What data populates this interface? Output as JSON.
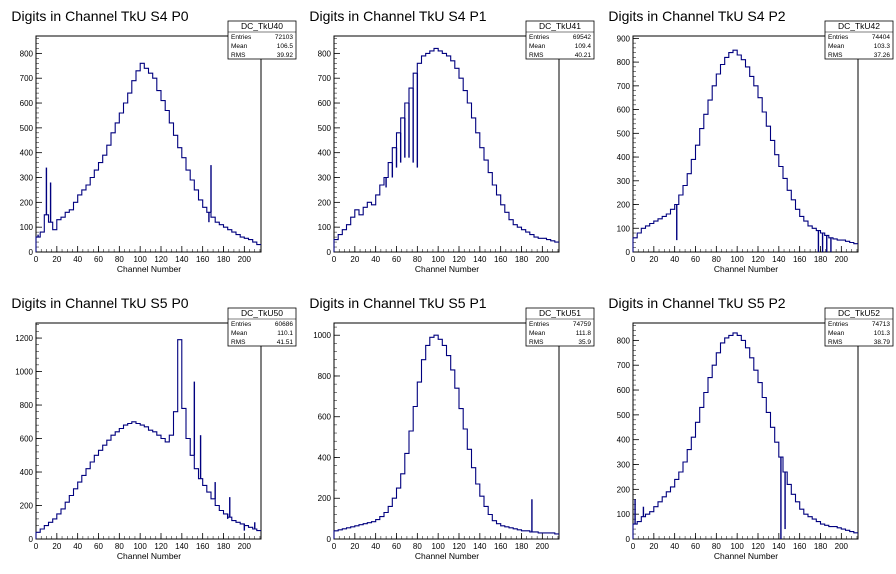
{
  "page": {
    "background": "#ffffff",
    "line_color": "#00007f"
  },
  "chart_data": [
    {
      "type": "bar",
      "title": "Digits in Channel TkU S4 P0",
      "xlabel": "Channel Number",
      "xlim": [
        0,
        216
      ],
      "ylim": [
        0,
        870
      ],
      "xticks": [
        0,
        20,
        40,
        60,
        80,
        100,
        120,
        140,
        160,
        180,
        200
      ],
      "yticks": [
        100,
        200,
        300,
        400,
        500,
        600,
        700,
        800
      ],
      "stats": {
        "name": "DC_TkU40",
        "entries": "72103",
        "mean": "106.5",
        "rms": "39.92"
      },
      "x": [
        2,
        6,
        10,
        14,
        18,
        22,
        26,
        30,
        34,
        38,
        42,
        46,
        50,
        54,
        58,
        62,
        66,
        70,
        74,
        78,
        82,
        86,
        90,
        94,
        98,
        102,
        106,
        110,
        114,
        118,
        122,
        126,
        130,
        134,
        138,
        142,
        146,
        150,
        154,
        158,
        162,
        166,
        170,
        174,
        178,
        182,
        186,
        190,
        194,
        198,
        202,
        206,
        210,
        214
      ],
      "values": [
        60,
        80,
        150,
        120,
        90,
        130,
        140,
        160,
        170,
        200,
        230,
        250,
        270,
        300,
        330,
        360,
        390,
        430,
        480,
        520,
        560,
        600,
        640,
        690,
        730,
        760,
        740,
        720,
        700,
        650,
        610,
        570,
        520,
        470,
        420,
        380,
        330,
        290,
        250,
        210,
        180,
        160,
        140,
        120,
        110,
        100,
        90,
        80,
        70,
        60,
        55,
        50,
        40,
        30
      ],
      "spikes": [
        [
          2,
          10
        ],
        [
          10,
          190
        ],
        [
          14,
          160
        ],
        [
          166,
          -40
        ],
        [
          168,
          190
        ]
      ]
    },
    {
      "type": "bar",
      "title": "Digits in Channel TkU S4 P1",
      "xlabel": "Channel Number",
      "xlim": [
        0,
        216
      ],
      "ylim": [
        0,
        870
      ],
      "xticks": [
        0,
        20,
        40,
        60,
        80,
        100,
        120,
        140,
        160,
        180,
        200
      ],
      "yticks": [
        100,
        200,
        300,
        400,
        500,
        600,
        700,
        800
      ],
      "stats": {
        "name": "DC_TkU41",
        "entries": "69542",
        "mean": "109.4",
        "rms": "40.21"
      },
      "x": [
        2,
        6,
        10,
        14,
        18,
        22,
        26,
        30,
        34,
        38,
        42,
        46,
        50,
        54,
        58,
        62,
        66,
        70,
        74,
        78,
        82,
        86,
        90,
        94,
        98,
        102,
        106,
        110,
        114,
        118,
        122,
        126,
        130,
        134,
        138,
        142,
        146,
        150,
        154,
        158,
        162,
        166,
        170,
        174,
        178,
        182,
        186,
        190,
        194,
        198,
        202,
        206,
        210,
        214
      ],
      "values": [
        50,
        70,
        90,
        110,
        140,
        170,
        150,
        180,
        200,
        190,
        230,
        270,
        300,
        360,
        420,
        480,
        540,
        600,
        660,
        720,
        760,
        790,
        800,
        810,
        820,
        810,
        800,
        790,
        770,
        740,
        700,
        650,
        600,
        540,
        480,
        420,
        370,
        320,
        270,
        230,
        190,
        160,
        130,
        110,
        100,
        90,
        80,
        70,
        60,
        55,
        55,
        50,
        45,
        40
      ],
      "spikes": [
        [
          50,
          -40
        ],
        [
          56,
          -60
        ],
        [
          60,
          -80
        ],
        [
          64,
          -120
        ],
        [
          68,
          -160
        ],
        [
          72,
          -220
        ],
        [
          76,
          -300
        ],
        [
          80,
          -380
        ]
      ]
    },
    {
      "type": "bar",
      "title": "Digits in Channel TkU S4 P2",
      "xlabel": "Channel Number",
      "xlim": [
        0,
        216
      ],
      "ylim": [
        0,
        910
      ],
      "xticks": [
        0,
        20,
        40,
        60,
        80,
        100,
        120,
        140,
        160,
        180,
        200
      ],
      "yticks": [
        100,
        200,
        300,
        400,
        500,
        600,
        700,
        800,
        900
      ],
      "stats": {
        "name": "DC_TkU42",
        "entries": "74404",
        "mean": "103.3",
        "rms": "37.26"
      },
      "x": [
        2,
        6,
        10,
        14,
        18,
        22,
        26,
        30,
        34,
        38,
        42,
        46,
        50,
        54,
        58,
        62,
        66,
        70,
        74,
        78,
        82,
        86,
        90,
        94,
        98,
        102,
        106,
        110,
        114,
        118,
        122,
        126,
        130,
        134,
        138,
        142,
        146,
        150,
        154,
        158,
        162,
        166,
        170,
        174,
        178,
        182,
        186,
        190,
        194,
        198,
        202,
        206,
        210,
        214
      ],
      "values": [
        60,
        80,
        100,
        110,
        120,
        130,
        140,
        150,
        160,
        180,
        200,
        240,
        280,
        330,
        390,
        450,
        520,
        580,
        640,
        700,
        750,
        790,
        820,
        840,
        850,
        830,
        810,
        780,
        740,
        700,
        650,
        590,
        530,
        470,
        410,
        360,
        310,
        260,
        220,
        180,
        150,
        130,
        110,
        100,
        90,
        80,
        70,
        60,
        55,
        50,
        50,
        45,
        40,
        35
      ],
      "spikes": [
        [
          42,
          -150
        ],
        [
          178,
          -140
        ],
        [
          182,
          -170
        ],
        [
          186,
          -160
        ],
        [
          190,
          -120
        ]
      ]
    },
    {
      "type": "bar",
      "title": "Digits in Channel TkU S5 P0",
      "xlabel": "Channel Number",
      "xlim": [
        0,
        216
      ],
      "ylim": [
        0,
        1290
      ],
      "xticks": [
        0,
        20,
        40,
        60,
        80,
        100,
        120,
        140,
        160,
        180,
        200
      ],
      "yticks": [
        200,
        400,
        600,
        800,
        1000,
        1200
      ],
      "stats": {
        "name": "DC_TkU50",
        "entries": "60686",
        "mean": "110.1",
        "rms": "41.51"
      },
      "x": [
        2,
        6,
        10,
        14,
        18,
        22,
        26,
        30,
        34,
        38,
        42,
        46,
        50,
        54,
        58,
        62,
        66,
        70,
        74,
        78,
        82,
        86,
        90,
        94,
        98,
        102,
        106,
        110,
        114,
        118,
        122,
        126,
        130,
        134,
        138,
        142,
        146,
        150,
        154,
        158,
        162,
        166,
        170,
        174,
        178,
        182,
        186,
        190,
        194,
        198,
        202,
        206,
        210,
        214
      ],
      "values": [
        40,
        60,
        80,
        100,
        120,
        150,
        180,
        220,
        260,
        300,
        340,
        380,
        420,
        460,
        500,
        530,
        560,
        590,
        620,
        640,
        660,
        680,
        690,
        700,
        690,
        680,
        670,
        650,
        640,
        620,
        600,
        580,
        620,
        760,
        1190,
        780,
        600,
        500,
        420,
        360,
        320,
        280,
        240,
        200,
        170,
        150,
        130,
        110,
        100,
        90,
        80,
        70,
        60,
        50
      ],
      "spikes": [
        [
          152,
          440
        ],
        [
          158,
          260
        ],
        [
          172,
          100
        ],
        [
          184,
          -30
        ],
        [
          186,
          120
        ],
        [
          200,
          -40
        ],
        [
          210,
          40
        ]
      ]
    },
    {
      "type": "bar",
      "title": "Digits in Channel TkU S5 P1",
      "xlabel": "Channel Number",
      "xlim": [
        0,
        216
      ],
      "ylim": [
        0,
        1060
      ],
      "xticks": [
        0,
        20,
        40,
        60,
        80,
        100,
        120,
        140,
        160,
        180,
        200
      ],
      "yticks": [
        200,
        400,
        600,
        800,
        1000
      ],
      "stats": {
        "name": "DC_TkU51",
        "entries": "74759",
        "mean": "111.8",
        "rms": "35.9"
      },
      "x": [
        2,
        6,
        10,
        14,
        18,
        22,
        26,
        30,
        34,
        38,
        42,
        46,
        50,
        54,
        58,
        62,
        66,
        70,
        74,
        78,
        82,
        86,
        90,
        94,
        98,
        102,
        106,
        110,
        114,
        118,
        122,
        126,
        130,
        134,
        138,
        142,
        146,
        150,
        154,
        158,
        162,
        166,
        170,
        174,
        178,
        182,
        186,
        190,
        194,
        198,
        202,
        206,
        210,
        214
      ],
      "values": [
        40,
        45,
        50,
        55,
        60,
        65,
        70,
        75,
        80,
        85,
        95,
        110,
        130,
        160,
        200,
        250,
        320,
        420,
        530,
        650,
        770,
        880,
        950,
        990,
        1000,
        980,
        950,
        900,
        830,
        740,
        640,
        540,
        440,
        350,
        270,
        210,
        160,
        120,
        90,
        75,
        65,
        60,
        55,
        50,
        45,
        40,
        40,
        35,
        35,
        30,
        30,
        30,
        30,
        25
      ],
      "spikes": [
        [
          190,
          160
        ]
      ]
    },
    {
      "type": "bar",
      "title": "Digits in Channel TkU S5 P2",
      "xlabel": "Channel Number",
      "xlim": [
        0,
        216
      ],
      "ylim": [
        0,
        870
      ],
      "xticks": [
        0,
        20,
        40,
        60,
        80,
        100,
        120,
        140,
        160,
        180,
        200
      ],
      "yticks": [
        100,
        200,
        300,
        400,
        500,
        600,
        700,
        800
      ],
      "stats": {
        "name": "DC_TkU52",
        "entries": "74713",
        "mean": "101.3",
        "rms": "38.79"
      },
      "x": [
        2,
        6,
        10,
        14,
        18,
        22,
        26,
        30,
        34,
        38,
        42,
        46,
        50,
        54,
        58,
        62,
        66,
        70,
        74,
        78,
        82,
        86,
        90,
        94,
        98,
        102,
        106,
        110,
        114,
        118,
        122,
        126,
        130,
        134,
        138,
        142,
        146,
        150,
        154,
        158,
        162,
        166,
        170,
        174,
        178,
        182,
        186,
        190,
        194,
        198,
        202,
        206,
        210,
        214
      ],
      "values": [
        60,
        70,
        90,
        100,
        110,
        130,
        150,
        170,
        190,
        210,
        240,
        270,
        310,
        360,
        410,
        470,
        530,
        590,
        650,
        700,
        750,
        790,
        810,
        820,
        830,
        820,
        800,
        770,
        730,
        680,
        630,
        570,
        510,
        450,
        390,
        330,
        270,
        220,
        180,
        150,
        120,
        100,
        90,
        80,
        70,
        60,
        55,
        50,
        50,
        45,
        40,
        35,
        30,
        25
      ],
      "spikes": [
        [
          2,
          100
        ],
        [
          10,
          40
        ],
        [
          142,
          -330
        ],
        [
          146,
          -230
        ]
      ]
    }
  ]
}
